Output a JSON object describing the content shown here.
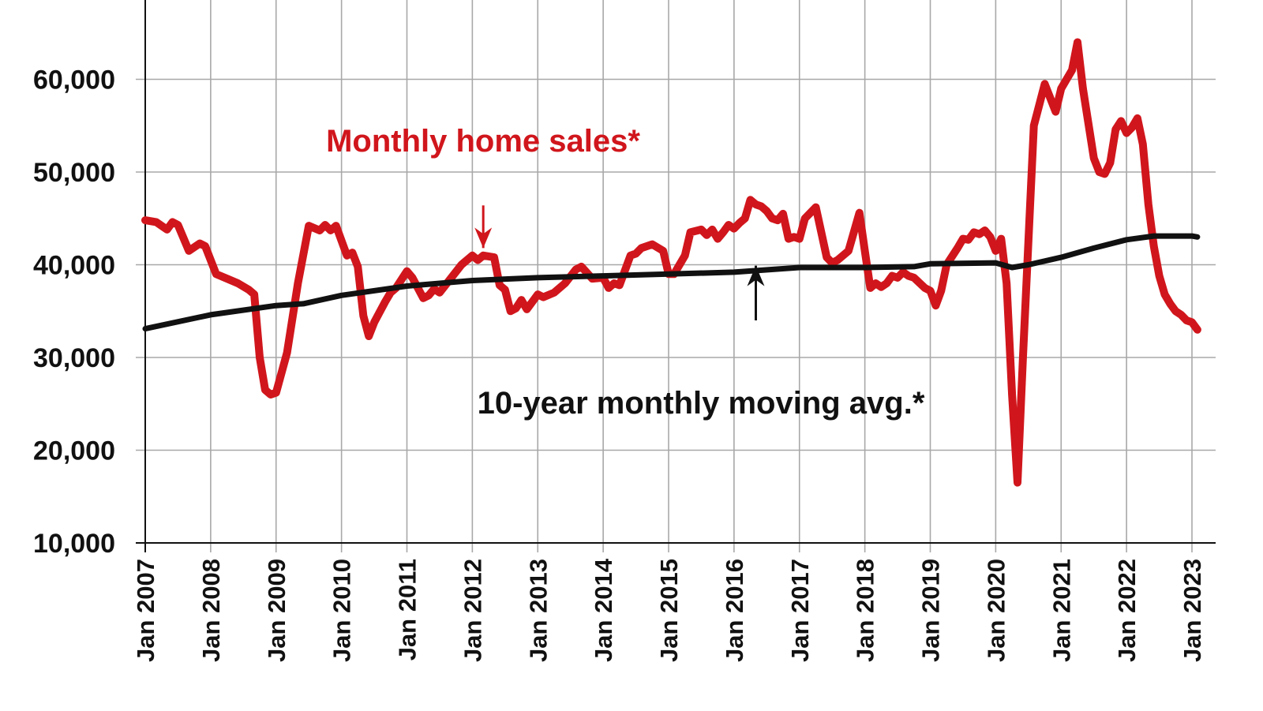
{
  "chart_data": {
    "type": "line",
    "title": "",
    "xlabel": "",
    "ylabel": "",
    "x_range": [
      "2007-01",
      "2023-01"
    ],
    "ylim": [
      10000,
      65000
    ],
    "y_ticks": [
      "10,000",
      "20,000",
      "30,000",
      "40,000",
      "50,000",
      "60,000"
    ],
    "x_ticks": [
      "Jan 2007",
      "Jan 2008",
      "Jan 2009",
      "Jan 2010",
      "Jan 2011",
      "Jan 2012",
      "Jan 2013",
      "Jan 2014",
      "Jan 2015",
      "Jan 2016",
      "Jan 2017",
      "Jan 2018",
      "Jan 2019",
      "Jan 2020",
      "Jan 2021",
      "Jan 2022",
      "Jan 2023"
    ],
    "grid": true,
    "series": [
      {
        "name": "Monthly home sales*",
        "color": "#d0161c",
        "points": [
          [
            "2007-01",
            44800
          ],
          [
            "2007-03",
            44600
          ],
          [
            "2007-05",
            43800
          ],
          [
            "2007-06",
            44600
          ],
          [
            "2007-07",
            44300
          ],
          [
            "2007-09",
            41500
          ],
          [
            "2007-11",
            42300
          ],
          [
            "2007-12",
            42000
          ],
          [
            "2008-02",
            39000
          ],
          [
            "2008-04",
            38500
          ],
          [
            "2008-06",
            38000
          ],
          [
            "2008-08",
            37300
          ],
          [
            "2008-09",
            36800
          ],
          [
            "2008-10",
            30000
          ],
          [
            "2008-11",
            26500
          ],
          [
            "2008-12",
            26000
          ],
          [
            "2009-01",
            26200
          ],
          [
            "2009-03",
            30500
          ],
          [
            "2009-05",
            38000
          ],
          [
            "2009-07",
            44200
          ],
          [
            "2009-09",
            43700
          ],
          [
            "2009-10",
            44300
          ],
          [
            "2009-11",
            43700
          ],
          [
            "2009-12",
            44200
          ],
          [
            "2010-02",
            41000
          ],
          [
            "2010-03",
            41300
          ],
          [
            "2010-04",
            39800
          ],
          [
            "2010-05",
            34500
          ],
          [
            "2010-06",
            32300
          ],
          [
            "2010-07",
            33800
          ],
          [
            "2010-09",
            36000
          ],
          [
            "2010-10",
            37000
          ],
          [
            "2010-11",
            37500
          ],
          [
            "2011-01",
            39300
          ],
          [
            "2011-02",
            38600
          ],
          [
            "2011-04",
            36400
          ],
          [
            "2011-05",
            36700
          ],
          [
            "2011-06",
            37400
          ],
          [
            "2011-07",
            37000
          ],
          [
            "2011-09",
            38500
          ],
          [
            "2011-11",
            40000
          ],
          [
            "2012-01",
            41000
          ],
          [
            "2012-02",
            40500
          ],
          [
            "2012-03",
            41000
          ],
          [
            "2012-05",
            40800
          ],
          [
            "2012-06",
            37800
          ],
          [
            "2012-07",
            37300
          ],
          [
            "2012-08",
            35000
          ],
          [
            "2012-09",
            35300
          ],
          [
            "2012-10",
            36200
          ],
          [
            "2012-11",
            35200
          ],
          [
            "2013-01",
            36800
          ],
          [
            "2013-02",
            36500
          ],
          [
            "2013-04",
            37000
          ],
          [
            "2013-06",
            38000
          ],
          [
            "2013-08",
            39500
          ],
          [
            "2013-09",
            39800
          ],
          [
            "2013-11",
            38500
          ],
          [
            "2014-01",
            38600
          ],
          [
            "2014-02",
            37500
          ],
          [
            "2014-03",
            38000
          ],
          [
            "2014-04",
            37800
          ],
          [
            "2014-06",
            41000
          ],
          [
            "2014-07",
            41200
          ],
          [
            "2014-08",
            41800
          ],
          [
            "2014-10",
            42200
          ],
          [
            "2014-12",
            41500
          ],
          [
            "2015-01",
            39000
          ],
          [
            "2015-02",
            39000
          ],
          [
            "2015-04",
            41000
          ],
          [
            "2015-05",
            43500
          ],
          [
            "2015-07",
            43800
          ],
          [
            "2015-08",
            43200
          ],
          [
            "2015-09",
            43800
          ],
          [
            "2015-10",
            42800
          ],
          [
            "2015-11",
            43500
          ],
          [
            "2015-12",
            44300
          ],
          [
            "2016-01",
            43900
          ],
          [
            "2016-02",
            44500
          ],
          [
            "2016-03",
            45000
          ],
          [
            "2016-04",
            47000
          ],
          [
            "2016-05",
            46500
          ],
          [
            "2016-06",
            46300
          ],
          [
            "2016-07",
            45800
          ],
          [
            "2016-08",
            45000
          ],
          [
            "2016-09",
            44800
          ],
          [
            "2016-10",
            45500
          ],
          [
            "2016-11",
            42800
          ],
          [
            "2016-12",
            43000
          ],
          [
            "2017-01",
            42800
          ],
          [
            "2017-02",
            45000
          ],
          [
            "2017-04",
            46200
          ],
          [
            "2017-06",
            40800
          ],
          [
            "2017-07",
            40200
          ],
          [
            "2017-08",
            40500
          ],
          [
            "2017-10",
            41500
          ],
          [
            "2017-12",
            45600
          ],
          [
            "2018-01",
            41500
          ],
          [
            "2018-02",
            37500
          ],
          [
            "2018-03",
            38000
          ],
          [
            "2018-04",
            37600
          ],
          [
            "2018-05",
            38000
          ],
          [
            "2018-06",
            38800
          ],
          [
            "2018-07",
            38600
          ],
          [
            "2018-08",
            39200
          ],
          [
            "2018-09",
            38800
          ],
          [
            "2018-10",
            38600
          ],
          [
            "2018-12",
            37500
          ],
          [
            "2019-01",
            37200
          ],
          [
            "2019-02",
            35600
          ],
          [
            "2019-03",
            37200
          ],
          [
            "2019-04",
            40000
          ],
          [
            "2019-06",
            41800
          ],
          [
            "2019-07",
            42800
          ],
          [
            "2019-08",
            42700
          ],
          [
            "2019-09",
            43500
          ],
          [
            "2019-10",
            43300
          ],
          [
            "2019-11",
            43700
          ],
          [
            "2019-12",
            43000
          ],
          [
            "2020-01",
            41500
          ],
          [
            "2020-02",
            42800
          ],
          [
            "2020-03",
            38000
          ],
          [
            "2020-04",
            26000
          ],
          [
            "2020-05",
            16500
          ],
          [
            "2020-06",
            30000
          ],
          [
            "2020-08",
            55000
          ],
          [
            "2020-10",
            59500
          ],
          [
            "2020-11",
            58000
          ],
          [
            "2020-12",
            56500
          ],
          [
            "2021-01",
            59000
          ],
          [
            "2021-02",
            60000
          ],
          [
            "2021-03",
            61000
          ],
          [
            "2021-04",
            64000
          ],
          [
            "2021-05",
            59000
          ],
          [
            "2021-07",
            51500
          ],
          [
            "2021-08",
            50000
          ],
          [
            "2021-09",
            49800
          ],
          [
            "2021-10",
            51000
          ],
          [
            "2021-11",
            54600
          ],
          [
            "2021-12",
            55500
          ],
          [
            "2022-01",
            54200
          ],
          [
            "2022-02",
            54800
          ],
          [
            "2022-03",
            55800
          ],
          [
            "2022-04",
            53000
          ],
          [
            "2022-05",
            46500
          ],
          [
            "2022-06",
            42000
          ],
          [
            "2022-07",
            38800
          ],
          [
            "2022-08",
            36800
          ],
          [
            "2022-09",
            35800
          ],
          [
            "2022-10",
            35000
          ],
          [
            "2022-11",
            34600
          ],
          [
            "2022-12",
            34000
          ],
          [
            "2023-01",
            33800
          ],
          [
            "2023-02",
            33000
          ]
        ]
      },
      {
        "name": "10-year monthly moving avg.*",
        "color": "#111111",
        "points": [
          [
            "2007-01",
            33100
          ],
          [
            "2008-01",
            34600
          ],
          [
            "2009-01",
            35600
          ],
          [
            "2009-06",
            35800
          ],
          [
            "2010-01",
            36700
          ],
          [
            "2011-01",
            37700
          ],
          [
            "2012-01",
            38300
          ],
          [
            "2013-01",
            38600
          ],
          [
            "2014-01",
            38800
          ],
          [
            "2015-01",
            39000
          ],
          [
            "2016-01",
            39200
          ],
          [
            "2017-01",
            39700
          ],
          [
            "2018-01",
            39700
          ],
          [
            "2018-10",
            39800
          ],
          [
            "2019-01",
            40100
          ],
          [
            "2020-01",
            40200
          ],
          [
            "2020-04",
            39700
          ],
          [
            "2020-07",
            40000
          ],
          [
            "2021-01",
            40800
          ],
          [
            "2021-07",
            41800
          ],
          [
            "2022-01",
            42700
          ],
          [
            "2022-06",
            43100
          ],
          [
            "2023-01",
            43100
          ],
          [
            "2023-02",
            43000
          ]
        ]
      }
    ],
    "annotations": [
      {
        "text": "Monthly home sales*",
        "color": "#d0161c",
        "arrow_to": [
          "2012-03",
          41800
        ],
        "arrow_from": [
          "2012-03",
          46400
        ]
      },
      {
        "text": "10-year monthly moving avg.*",
        "color": "#111111",
        "arrow_to": [
          "2016-05",
          39900
        ],
        "arrow_from": [
          "2016-05",
          34000
        ]
      }
    ]
  }
}
